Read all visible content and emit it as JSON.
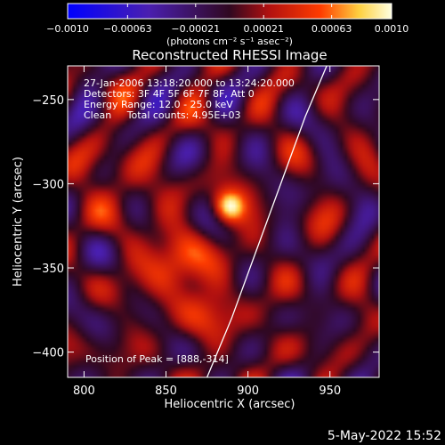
{
  "chart_data": {
    "type": "heatmap",
    "title": "Reconstructed RHESSI Image",
    "xlabel": "Heliocentric X (arcsec)",
    "ylabel": "Heliocentric Y (arcsec)",
    "xlim": [
      790,
      980
    ],
    "ylim": [
      -415,
      -230
    ],
    "x_ticks": [
      800,
      850,
      900,
      950
    ],
    "x_tick_labels": [
      "800",
      "850",
      "900",
      "950"
    ],
    "y_ticks": [
      -250,
      -300,
      -350,
      -400
    ],
    "y_tick_labels": [
      "−250",
      "−300",
      "−350",
      "−400"
    ],
    "colorbar": {
      "min": -0.001,
      "max": 0.001,
      "ticks": [
        -0.001,
        -0.00063,
        -0.00021,
        0.00021,
        0.00063,
        0.001
      ],
      "tick_labels": [
        "−0.0010",
        "−0.00063",
        "−0.00021",
        "0.00021",
        "0.00063",
        "0.0010"
      ],
      "unit_label": "(photons cm⁻² s⁻¹ asec⁻²)"
    },
    "annotations": [
      "27-Jan-2006 13:18:20.000 to 13:24:20.000",
      "Detectors: 3F 4F 5F 6F 7F 8F, Att 0",
      "Energy Range: 12.0 - 25.0 keV",
      "Clean     Total counts: 4.95E+03"
    ],
    "peak_label": "Position of Peak = [888,-314]",
    "peak": {
      "x": 888,
      "y": -314
    },
    "sources": [
      {
        "x": 888,
        "y": -314,
        "flux": 0.001,
        "sigma": 7
      },
      {
        "x": 855,
        "y": -348,
        "flux": 0.00055,
        "sigma": 14
      },
      {
        "x": 820,
        "y": -300,
        "flux": 0.0003,
        "sigma": 14
      },
      {
        "x": 880,
        "y": -375,
        "flux": 0.00028,
        "sigma": 16
      }
    ],
    "limb_curve": {
      "x": [
        875,
        890,
        905,
        920,
        935,
        948
      ],
      "y": [
        -415,
        -380,
        -340,
        -300,
        -260,
        -230
      ]
    },
    "date_stamp": "5-May-2022 15:52"
  }
}
